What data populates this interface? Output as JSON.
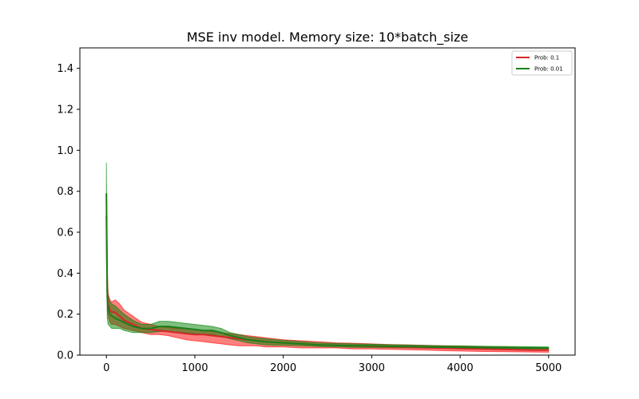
{
  "chart_data": {
    "type": "line",
    "title": "MSE inv model. Memory size: 10*batch_size",
    "xlabel": "",
    "ylabel": "",
    "xlim": [
      -300,
      5300
    ],
    "ylim": [
      0,
      1.5
    ],
    "xticks": [
      0,
      1000,
      2000,
      3000,
      4000,
      5000
    ],
    "xtick_labels": [
      "0",
      "1000",
      "2000",
      "3000",
      "4000",
      "5000"
    ],
    "yticks": [
      0.0,
      0.2,
      0.4,
      0.6,
      0.8,
      1.0,
      1.2,
      1.4
    ],
    "ytick_labels": [
      "0.0",
      "0.2",
      "0.4",
      "0.6",
      "0.8",
      "1.0",
      "1.2",
      "1.4"
    ],
    "grid": false,
    "legend_position": "top-right",
    "series": [
      {
        "name": "Prob: 0.1",
        "color": "#d62728",
        "fill_color": "#ff0000",
        "x": [
          0,
          10,
          20,
          40,
          60,
          100,
          150,
          200,
          300,
          400,
          500,
          600,
          700,
          800,
          900,
          1000,
          1100,
          1200,
          1300,
          1400,
          1500,
          1600,
          1700,
          1800,
          2000,
          2200,
          2400,
          2600,
          2800,
          3000,
          3200,
          3400,
          3600,
          3800,
          4000,
          4200,
          4400,
          4600,
          4800,
          5000
        ],
        "mean": [
          0.68,
          0.31,
          0.25,
          0.22,
          0.21,
          0.21,
          0.19,
          0.17,
          0.15,
          0.13,
          0.125,
          0.12,
          0.115,
          0.11,
          0.105,
          0.1,
          0.1,
          0.095,
          0.09,
          0.085,
          0.08,
          0.075,
          0.07,
          0.065,
          0.06,
          0.055,
          0.05,
          0.048,
          0.045,
          0.043,
          0.04,
          0.038,
          0.036,
          0.034,
          0.032,
          0.03,
          0.028,
          0.027,
          0.025,
          0.024
        ],
        "lower": [
          0.6,
          0.22,
          0.19,
          0.16,
          0.15,
          0.15,
          0.14,
          0.13,
          0.12,
          0.11,
          0.1,
          0.1,
          0.095,
          0.085,
          0.075,
          0.07,
          0.065,
          0.06,
          0.055,
          0.05,
          0.045,
          0.045,
          0.045,
          0.04,
          0.04,
          0.035,
          0.035,
          0.035,
          0.03,
          0.03,
          0.028,
          0.026,
          0.024,
          0.022,
          0.02,
          0.018,
          0.017,
          0.016,
          0.015,
          0.014
        ],
        "upper": [
          0.76,
          0.4,
          0.3,
          0.27,
          0.26,
          0.27,
          0.25,
          0.22,
          0.19,
          0.16,
          0.15,
          0.14,
          0.135,
          0.13,
          0.13,
          0.125,
          0.12,
          0.115,
          0.11,
          0.105,
          0.1,
          0.095,
          0.09,
          0.085,
          0.075,
          0.07,
          0.065,
          0.06,
          0.058,
          0.055,
          0.052,
          0.05,
          0.048,
          0.046,
          0.044,
          0.042,
          0.04,
          0.038,
          0.036,
          0.034
        ]
      },
      {
        "name": "Prob: 0.01",
        "color": "#1a7f1a",
        "fill_color": "#008000",
        "x": [
          0,
          10,
          20,
          40,
          60,
          100,
          150,
          200,
          300,
          400,
          500,
          600,
          700,
          800,
          900,
          1000,
          1100,
          1200,
          1300,
          1400,
          1500,
          1600,
          1700,
          1800,
          2000,
          2200,
          2400,
          2600,
          2800,
          3000,
          3200,
          3400,
          3600,
          3800,
          4000,
          4200,
          4400,
          4600,
          4800,
          5000
        ],
        "mean": [
          0.79,
          0.28,
          0.22,
          0.2,
          0.19,
          0.18,
          0.17,
          0.16,
          0.14,
          0.13,
          0.13,
          0.14,
          0.14,
          0.135,
          0.13,
          0.125,
          0.12,
          0.12,
          0.11,
          0.095,
          0.085,
          0.075,
          0.07,
          0.065,
          0.06,
          0.055,
          0.05,
          0.048,
          0.046,
          0.045,
          0.043,
          0.042,
          0.04,
          0.039,
          0.038,
          0.037,
          0.036,
          0.036,
          0.035,
          0.035
        ],
        "lower": [
          0.64,
          0.18,
          0.15,
          0.14,
          0.13,
          0.13,
          0.13,
          0.12,
          0.11,
          0.11,
          0.11,
          0.115,
          0.115,
          0.11,
          0.11,
          0.105,
          0.1,
          0.1,
          0.09,
          0.08,
          0.07,
          0.06,
          0.055,
          0.05,
          0.048,
          0.045,
          0.042,
          0.04,
          0.038,
          0.037,
          0.036,
          0.035,
          0.034,
          0.033,
          0.032,
          0.031,
          0.03,
          0.03,
          0.03,
          0.03
        ],
        "upper": [
          0.94,
          0.36,
          0.29,
          0.26,
          0.25,
          0.24,
          0.22,
          0.2,
          0.17,
          0.15,
          0.15,
          0.165,
          0.165,
          0.16,
          0.155,
          0.15,
          0.145,
          0.14,
          0.13,
          0.11,
          0.1,
          0.09,
          0.085,
          0.08,
          0.072,
          0.066,
          0.06,
          0.057,
          0.055,
          0.053,
          0.051,
          0.05,
          0.048,
          0.046,
          0.045,
          0.044,
          0.043,
          0.042,
          0.041,
          0.04
        ]
      }
    ]
  }
}
